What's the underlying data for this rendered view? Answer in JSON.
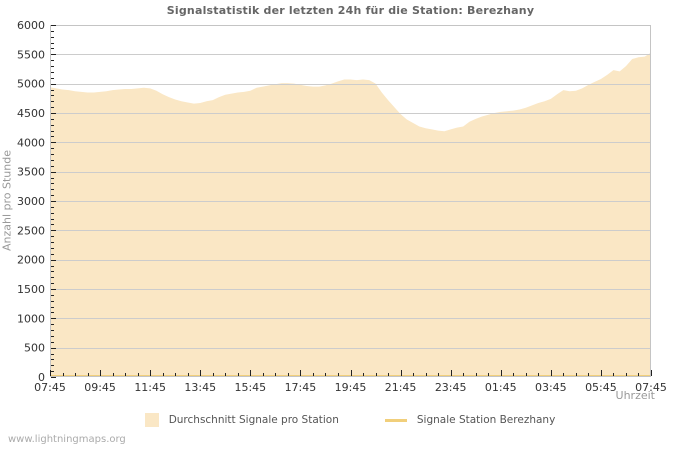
{
  "page": {
    "watermark": "www.lightningmaps.org"
  },
  "chart_data": {
    "type": "area",
    "title": "Signalstatistik der letzten 24h für die Station: Berezhany",
    "xlabel": "Uhrzeit",
    "ylabel": "Anzahl pro Stunde",
    "ylim": [
      0,
      6000
    ],
    "y_tick_step": 500,
    "y_minor_step": 100,
    "y_tick_labels": [
      "0",
      "500",
      "1000",
      "1500",
      "2000",
      "2500",
      "3000",
      "3500",
      "4000",
      "4500",
      "5000",
      "5500",
      "6000"
    ],
    "x_tick_labels": [
      "07:45",
      "09:45",
      "11:45",
      "13:45",
      "15:45",
      "17:45",
      "19:45",
      "21:45",
      "23:45",
      "01:45",
      "03:45",
      "05:45",
      "07:45"
    ],
    "x_minor_ticks_per_hour": 2,
    "grid": "horizontal",
    "legend_position": "bottom",
    "colors": {
      "grid": "#cccccc",
      "border": "#c4c4c4",
      "tick": "#222222",
      "tick_label": "#333333",
      "title": "#666666",
      "axis_title": "#999999"
    },
    "series": [
      {
        "name": "Durchschnitt Signale pro Station",
        "type": "area",
        "color": "#fae7c5",
        "values": [
          4940,
          4920,
          4900,
          4890,
          4870,
          4860,
          4850,
          4850,
          4860,
          4870,
          4890,
          4900,
          4910,
          4910,
          4920,
          4930,
          4920,
          4880,
          4820,
          4770,
          4730,
          4700,
          4680,
          4660,
          4670,
          4700,
          4720,
          4770,
          4810,
          4830,
          4850,
          4860,
          4880,
          4930,
          4950,
          4970,
          4990,
          5010,
          5010,
          5000,
          4980,
          4960,
          4950,
          4950,
          4970,
          5000,
          5040,
          5070,
          5070,
          5060,
          5070,
          5060,
          5000,
          4850,
          4720,
          4600,
          4480,
          4390,
          4330,
          4270,
          4240,
          4220,
          4200,
          4190,
          4220,
          4250,
          4270,
          4350,
          4400,
          4440,
          4470,
          4500,
          4520,
          4530,
          4540,
          4560,
          4590,
          4630,
          4670,
          4700,
          4740,
          4820,
          4890,
          4870,
          4880,
          4920,
          4980,
          5030,
          5080,
          5150,
          5230,
          5210,
          5300,
          5420,
          5450,
          5460,
          5530
        ]
      },
      {
        "name": "Signale Station Berezhany",
        "type": "line",
        "color": "#f1cf7b",
        "values": [
          0,
          0,
          0,
          0,
          0,
          0,
          0,
          0,
          0,
          0,
          0,
          0,
          0,
          0,
          0,
          0,
          0,
          0,
          0,
          0,
          0,
          0,
          0,
          0,
          0,
          0,
          0,
          0,
          0,
          0,
          0,
          0,
          0,
          0,
          0,
          0,
          0,
          0,
          0,
          0,
          0,
          0,
          0,
          0,
          0,
          0,
          0,
          0,
          0,
          0,
          0,
          0,
          0,
          0,
          0,
          0,
          0,
          0,
          0,
          0,
          0,
          0,
          0,
          0,
          0,
          0,
          0,
          0,
          0,
          0,
          0,
          0,
          0,
          0,
          0,
          0,
          0,
          0,
          0,
          0,
          0,
          0,
          0,
          0,
          0,
          0,
          0,
          0,
          0,
          0,
          0,
          0,
          0,
          0,
          0,
          0,
          0
        ]
      }
    ],
    "sample_interval_minutes": 15,
    "x_start_label": "07:45",
    "x_end_label": "07:45"
  }
}
